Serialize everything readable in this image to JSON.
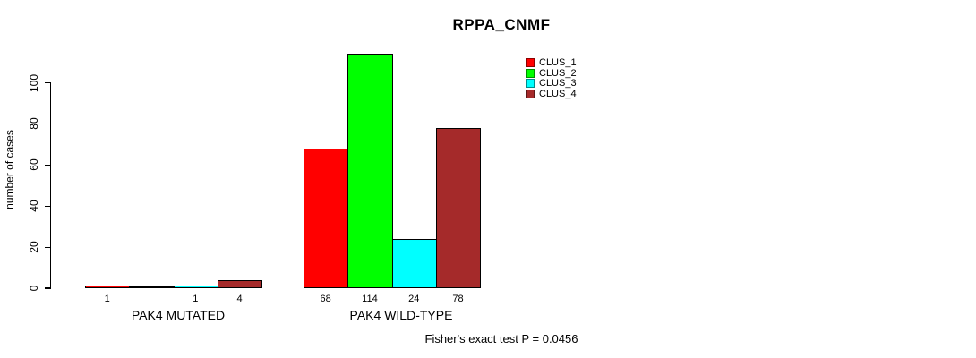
{
  "title": "RPPA_CNMF",
  "y_axis_label": "number of cases",
  "footer_annotation": "Fisher's exact test P = 0.0456",
  "colors": {
    "clus_1": "#ff0000",
    "clus_2": "#00ff00",
    "clus_3": "#00ffff",
    "clus_4": "#a52a2a",
    "axis": "#000000",
    "background": "#ffffff"
  },
  "legend": {
    "position": "top-right",
    "items": [
      {
        "label": "CLUS_1",
        "color": "#ff0000"
      },
      {
        "label": "CLUS_2",
        "color": "#00ff00"
      },
      {
        "label": "CLUS_3",
        "color": "#00ffff"
      },
      {
        "label": "CLUS_4",
        "color": "#a52a2a"
      }
    ]
  },
  "chart_data": {
    "type": "bar",
    "title": "RPPA_CNMF",
    "xlabel": "",
    "ylabel": "number of cases",
    "categories": [
      "PAK4 MUTATED",
      "PAK4 WILD-TYPE"
    ],
    "series": [
      {
        "name": "CLUS_1",
        "color": "#ff0000",
        "values": [
          1,
          68
        ]
      },
      {
        "name": "CLUS_2",
        "color": "#00ff00",
        "values": [
          0,
          114
        ]
      },
      {
        "name": "CLUS_3",
        "color": "#00ffff",
        "values": [
          1,
          24
        ]
      },
      {
        "name": "CLUS_4",
        "color": "#a52a2a",
        "values": [
          4,
          78
        ]
      }
    ],
    "bar_value_labels": [
      [
        "1",
        "",
        "1",
        "4"
      ],
      [
        "68",
        "114",
        "24",
        "78"
      ]
    ],
    "ylim": [
      0,
      100
    ],
    "yticks": [
      0,
      20,
      40,
      60,
      80,
      100
    ],
    "grid": false,
    "legend_position": "top-right",
    "legend_entries": [
      "CLUS_1",
      "CLUS_2",
      "CLUS_3",
      "CLUS_4"
    ],
    "annotation": "Fisher's exact test P = 0.0456"
  }
}
